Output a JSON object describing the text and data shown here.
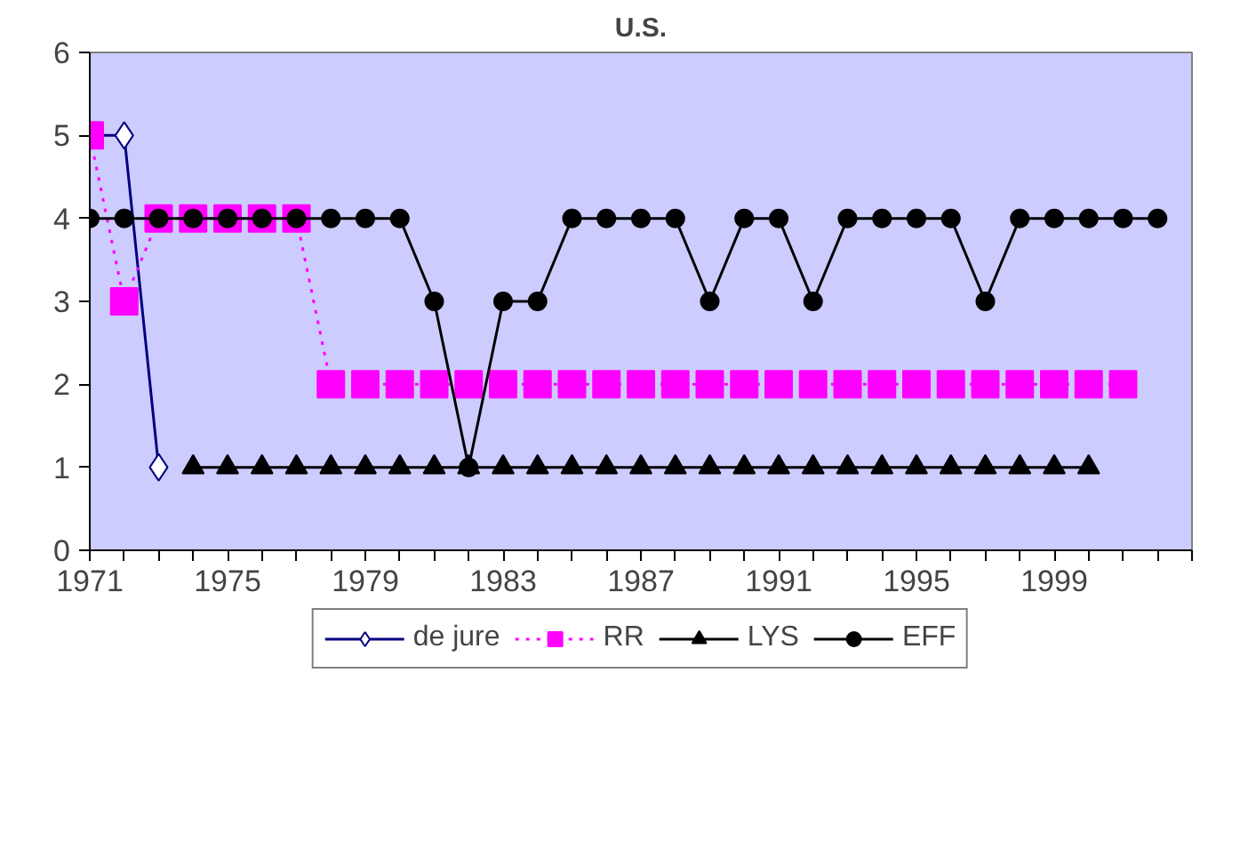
{
  "chart_data": {
    "type": "line",
    "title": "U.S.",
    "x": [
      1971,
      1972,
      1973,
      1974,
      1975,
      1976,
      1977,
      1978,
      1979,
      1980,
      1981,
      1982,
      1983,
      1984,
      1985,
      1986,
      1987,
      1988,
      1989,
      1990,
      1991,
      1992,
      1993,
      1994,
      1995,
      1996,
      1997,
      1998,
      1999,
      2000,
      2001,
      2002
    ],
    "series": [
      {
        "name": "de jure",
        "color": "#000080",
        "marker": "diamond",
        "line_style": "solid",
        "values": [
          5,
          5,
          1,
          null,
          null,
          null,
          null,
          null,
          null,
          null,
          null,
          null,
          null,
          null,
          null,
          null,
          null,
          null,
          null,
          null,
          null,
          null,
          null,
          null,
          null,
          null,
          null,
          null,
          null,
          null,
          null,
          null
        ]
      },
      {
        "name": "RR",
        "color": "#ff00ff",
        "marker": "square",
        "line_style": "dotted",
        "values": [
          5,
          3,
          4,
          4,
          4,
          4,
          4,
          2,
          2,
          2,
          2,
          2,
          2,
          2,
          2,
          2,
          2,
          2,
          2,
          2,
          2,
          2,
          2,
          2,
          2,
          2,
          2,
          2,
          2,
          2,
          2,
          null
        ]
      },
      {
        "name": "LYS",
        "color": "#000000",
        "marker": "triangle",
        "line_style": "solid",
        "values": [
          null,
          null,
          null,
          1,
          1,
          1,
          1,
          1,
          1,
          1,
          1,
          1,
          1,
          1,
          1,
          1,
          1,
          1,
          1,
          1,
          1,
          1,
          1,
          1,
          1,
          1,
          1,
          1,
          1,
          1,
          null,
          null
        ]
      },
      {
        "name": "EFF",
        "color": "#000000",
        "marker": "circle",
        "line_style": "solid",
        "values": [
          4,
          4,
          4,
          4,
          4,
          4,
          4,
          4,
          4,
          4,
          3,
          1,
          3,
          3,
          4,
          4,
          4,
          4,
          3,
          4,
          4,
          3,
          4,
          4,
          4,
          4,
          3,
          4,
          4,
          4,
          4,
          4
        ]
      }
    ],
    "xlim": [
      1971,
      2003
    ],
    "xticks": [
      1971,
      {
        "value": 1972,
        "label": null
      },
      {
        "value": 1973,
        "label": null
      },
      {
        "value": 1974,
        "label": null
      },
      1975,
      {
        "value": 1976,
        "label": null
      },
      {
        "value": 1977,
        "label": null
      },
      {
        "value": 1978,
        "label": null
      },
      1979,
      {
        "value": 1980,
        "label": null
      },
      {
        "value": 1981,
        "label": null
      },
      {
        "value": 1982,
        "label": null
      },
      1983,
      {
        "value": 1984,
        "label": null
      },
      {
        "value": 1985,
        "label": null
      },
      {
        "value": 1986,
        "label": null
      },
      1987,
      {
        "value": 1988,
        "label": null
      },
      {
        "value": 1989,
        "label": null
      },
      {
        "value": 1990,
        "label": null
      },
      1991,
      {
        "value": 1992,
        "label": null
      },
      {
        "value": 1993,
        "label": null
      },
      {
        "value": 1994,
        "label": null
      },
      1995,
      {
        "value": 1996,
        "label": null
      },
      {
        "value": 1997,
        "label": null
      },
      {
        "value": 1998,
        "label": null
      },
      1999,
      {
        "value": 2000,
        "label": null
      },
      {
        "value": 2001,
        "label": null
      },
      {
        "value": 2002,
        "label": null
      },
      {
        "value": 2003,
        "label": null
      }
    ],
    "ylim": [
      0,
      6
    ],
    "yticks": [
      0,
      1,
      2,
      3,
      4,
      5,
      6
    ],
    "grid": false,
    "legend": "bottom"
  }
}
